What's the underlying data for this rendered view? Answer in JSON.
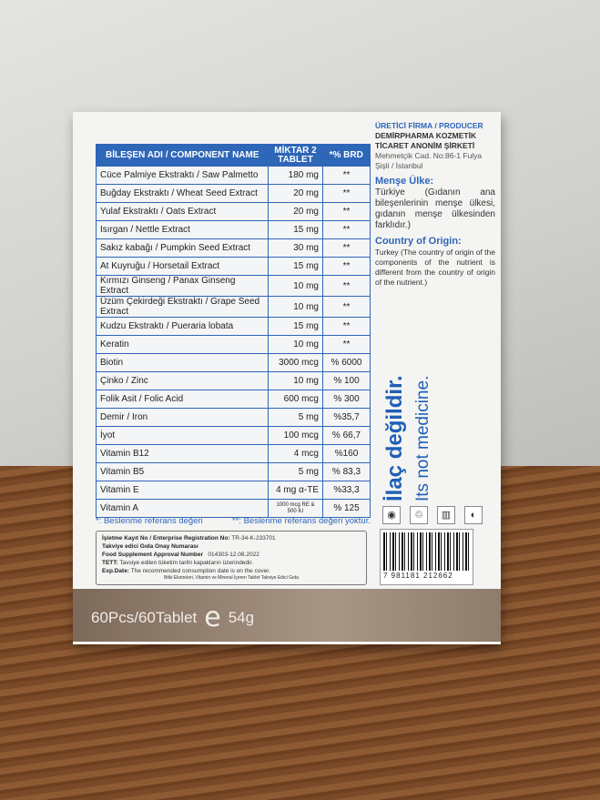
{
  "table": {
    "headers": [
      "BİLEŞEN ADI / COMPONENT NAME",
      "MİKTAR 2 TABLET",
      "*% BRD"
    ],
    "rows": [
      [
        "Cüce Palmiye Ekstraktı / Saw Palmetto",
        "180 mg",
        "**"
      ],
      [
        "Buğday Ekstraktı / Wheat Seed Extract",
        "20 mg",
        "**"
      ],
      [
        "Yulaf Ekstraktı / Oats Extract",
        "20 mg",
        "**"
      ],
      [
        "Isırgan / Nettle Extract",
        "15 mg",
        "**"
      ],
      [
        "Sakız kabağı / Pumpkin Seed Extract",
        "30 mg",
        "**"
      ],
      [
        "At Kuyruğu / Horsetail Extract",
        "15 mg",
        "**"
      ],
      [
        "Kırmızı Ginseng / Panax Ginseng Extract",
        "10 mg",
        "**"
      ],
      [
        "Üzüm Çekirdeği Ekstraktı / Grape Seed Extract",
        "10 mg",
        "**"
      ],
      [
        "Kudzu Ekstraktı / Pueraria lobata",
        "15 mg",
        "**"
      ],
      [
        "Keratin",
        "10 mg",
        "**"
      ],
      [
        "Biotin",
        "3000 mcg",
        "% 6000"
      ],
      [
        "Çinko / Zinc",
        "10 mg",
        "% 100"
      ],
      [
        "Folik Asit / Folic Acid",
        "600 mcg",
        "% 300"
      ],
      [
        "Demir / Iron",
        "5 mg",
        "%35,7"
      ],
      [
        "İyot",
        "100 mcg",
        "% 66,7"
      ],
      [
        "Vitamin B12",
        "4 mcg",
        "%160"
      ],
      [
        "Vitamin B5",
        "5 mg",
        "% 83,3"
      ],
      [
        "Vitamin E",
        "4 mg α-TE",
        "%33,3"
      ],
      [
        "Vitamin A",
        "1000 mcg RE & 500 IU",
        "% 125"
      ]
    ]
  },
  "footnotes": [
    "*: Beslenme referans değeri",
    "**: Beslenme referans değeri yoktur."
  ],
  "info": {
    "reg_label": "İşletme Kayıt No / Enterprise Registration No:",
    "reg": "TR-34-K-233701",
    "approval_label_tr": "Takviye edici Gıda Onay Numarası",
    "approval_label_en": "Food Supplement Approval Number",
    "approval": "014303-12.08.2022",
    "tett_label": "TETT:",
    "tett": "Tavsiye edilen tüketim tarihi kapakların üzerindedir.",
    "exp_label": "Exp.Date:",
    "exp": "The recommended consumption date is on the cover.",
    "bottom": "Bitki Ekstreleri, Vitamin ve Mineral İçeren Tablet Takviye Edici Gıda"
  },
  "producer": {
    "label": "ÜRETİCİ FİRMA / PRODUCER",
    "name1": "DEMİRPHARMA KOZMETİK",
    "name2": "TİCARET ANONİM ŞİRKETİ",
    "addr1": "Mehmetçik Cad. No:86-1 Fulya",
    "addr2": "Şişli / İstanbul"
  },
  "origin": {
    "tr_title": "Menşe Ülke:",
    "tr_text": "Türkiye (Gıdanın ana bileşenlerinin menşe ülkesi, gıdanın menşe ülkesinden farklıdır.)",
    "en_title": "Country of Origin:",
    "en_text": "Turkey (The country of origin of the components of the nutrient is different from the country of origin of the nutrient.)"
  },
  "warning_tr": "İlaç değildir.",
  "warning_en": "Its not medicine.",
  "icons": [
    "epo-icon",
    "recycle-icon",
    "bin-icon",
    "green-dot-icon"
  ],
  "barcode": "7 981181 212662",
  "band": {
    "count": "60Pcs/60Tablet",
    "e_mark": "e",
    "weight": "54g"
  },
  "colors": {
    "accent": "#2e66b8"
  }
}
